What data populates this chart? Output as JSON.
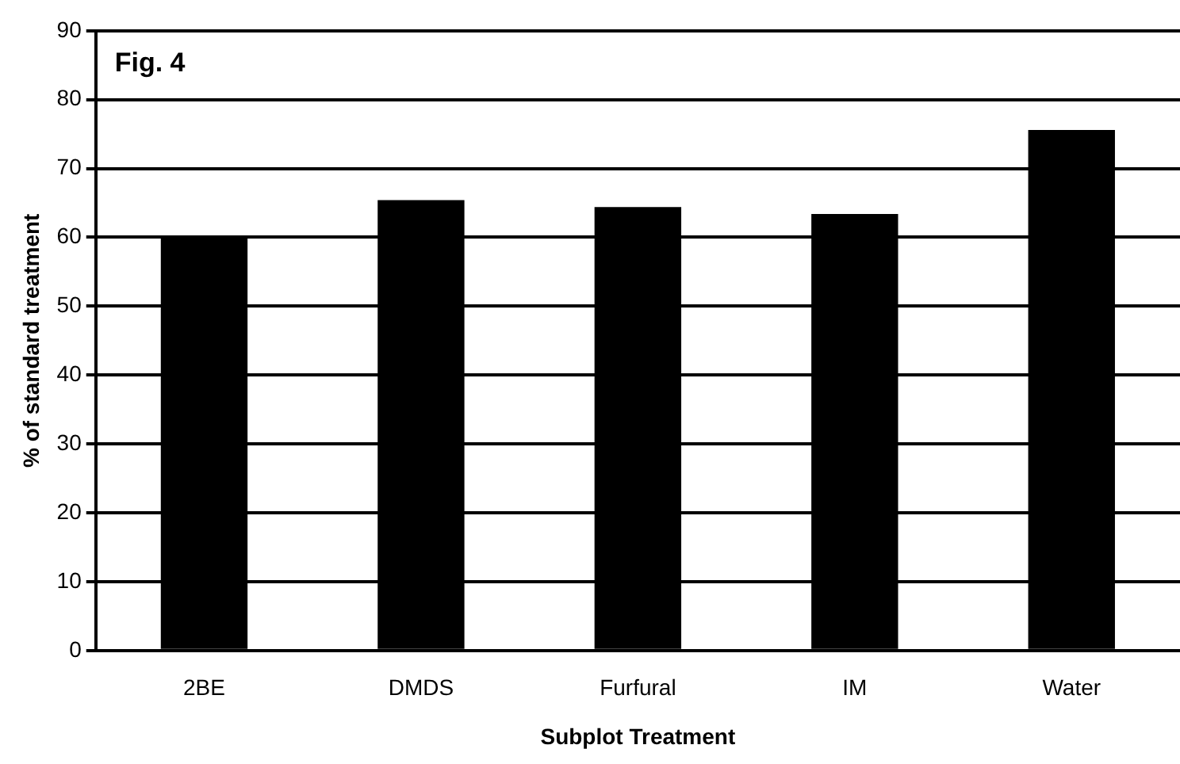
{
  "chart_data": {
    "type": "bar",
    "title": "Fig. 4",
    "xlabel": "Subplot Treatment",
    "ylabel": "% of standard treatment",
    "categories": [
      "2BE",
      "DMDS",
      "Furfural",
      "IM",
      "Water"
    ],
    "values": [
      60,
      65.4,
      64.4,
      63.4,
      75.6
    ],
    "color": "#000000",
    "ylim": [
      0,
      90
    ],
    "yticks": [
      0,
      10,
      20,
      30,
      40,
      50,
      60,
      70,
      80,
      90
    ],
    "grid": "y",
    "legend": false
  }
}
